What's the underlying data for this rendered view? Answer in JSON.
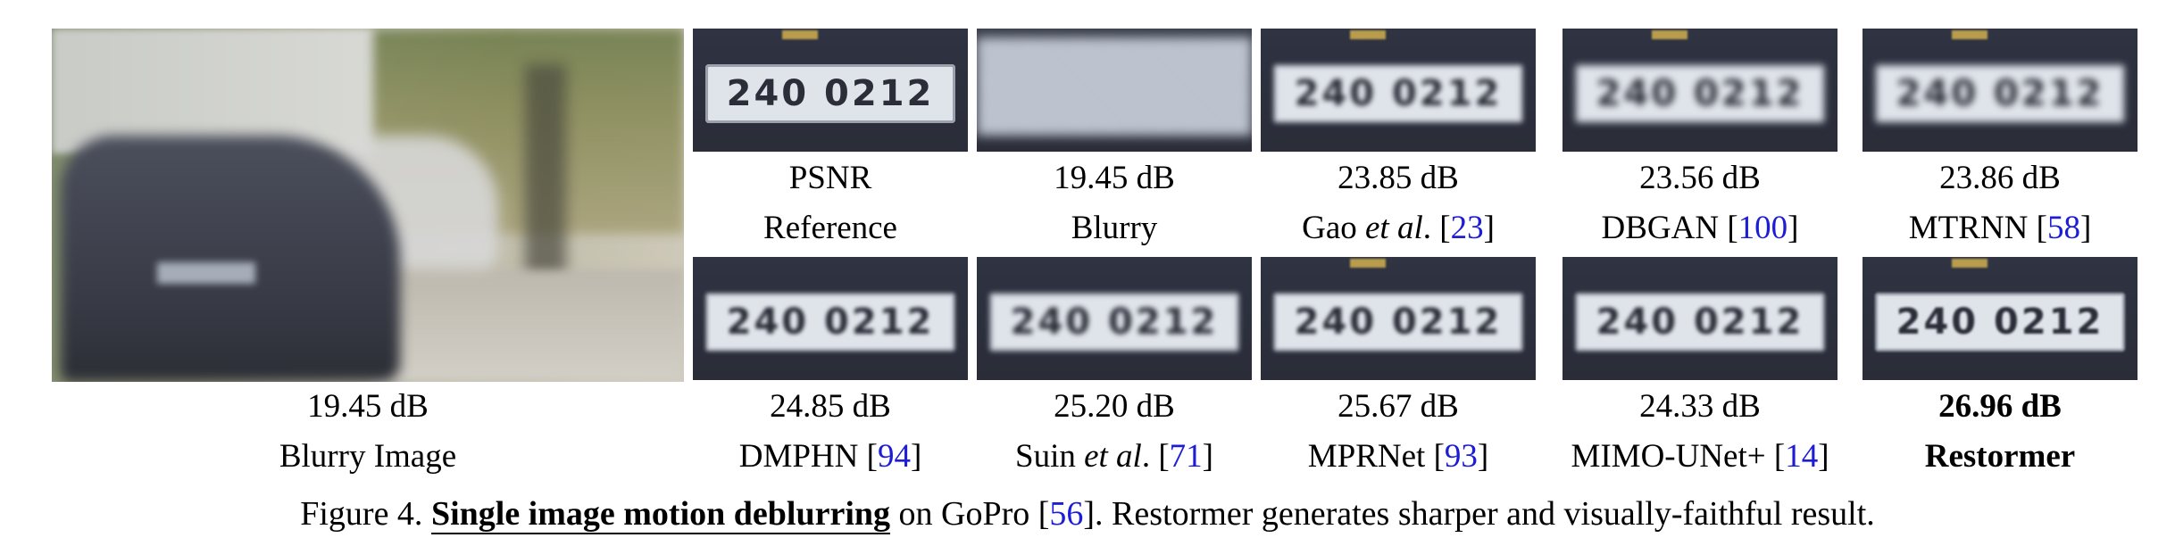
{
  "main": {
    "psnr": "19.45 dB",
    "label": "Blurry Image"
  },
  "row1": [
    {
      "psnr": "PSNR",
      "label": "Reference",
      "ref": "",
      "ref_close": "",
      "plate": "240 0212"
    },
    {
      "psnr": "19.45 dB",
      "label": "Blurry",
      "ref": "",
      "ref_close": "",
      "plate": ""
    },
    {
      "psnr": "23.85 dB",
      "label_pre": "Gao ",
      "label_italic": "et al",
      "label_post": ". [",
      "ref": "23",
      "ref_close": "]",
      "plate": "240 0212"
    },
    {
      "psnr": "23.56 dB",
      "label": "DBGAN [",
      "ref": "100",
      "ref_close": "]",
      "plate": "240 0212"
    },
    {
      "psnr": "23.86 dB",
      "label": "MTRNN [",
      "ref": "58",
      "ref_close": "]",
      "plate": "240 0212"
    }
  ],
  "row2": [
    {
      "psnr": "24.85 dB",
      "label": "DMPHN [",
      "ref": "94",
      "ref_close": "]",
      "plate": "240 0212"
    },
    {
      "psnr": "25.20 dB",
      "label_pre": "Suin ",
      "label_italic": "et al",
      "label_post": ". [",
      "ref": "71",
      "ref_close": "]",
      "plate": "240 0212"
    },
    {
      "psnr": "25.67 dB",
      "label": "MPRNet [",
      "ref": "93",
      "ref_close": "]",
      "plate": "240 0212"
    },
    {
      "psnr": "24.33 dB",
      "label": "MIMO-UNet+ [",
      "ref": "14",
      "ref_close": "]",
      "plate": "240 0212"
    },
    {
      "psnr": "26.96 dB",
      "label": "Restormer",
      "ref": "",
      "ref_close": "",
      "plate": "240 0212"
    }
  ],
  "caption": {
    "prefix": "Figure 4. ",
    "title": "Single image motion deblurring",
    "mid": " on GoPro [",
    "ref": "56",
    "suffix": "]. Restormer generates sharper and visually-faithful result."
  },
  "colors": {
    "reference_link": "#1d1dd6"
  }
}
